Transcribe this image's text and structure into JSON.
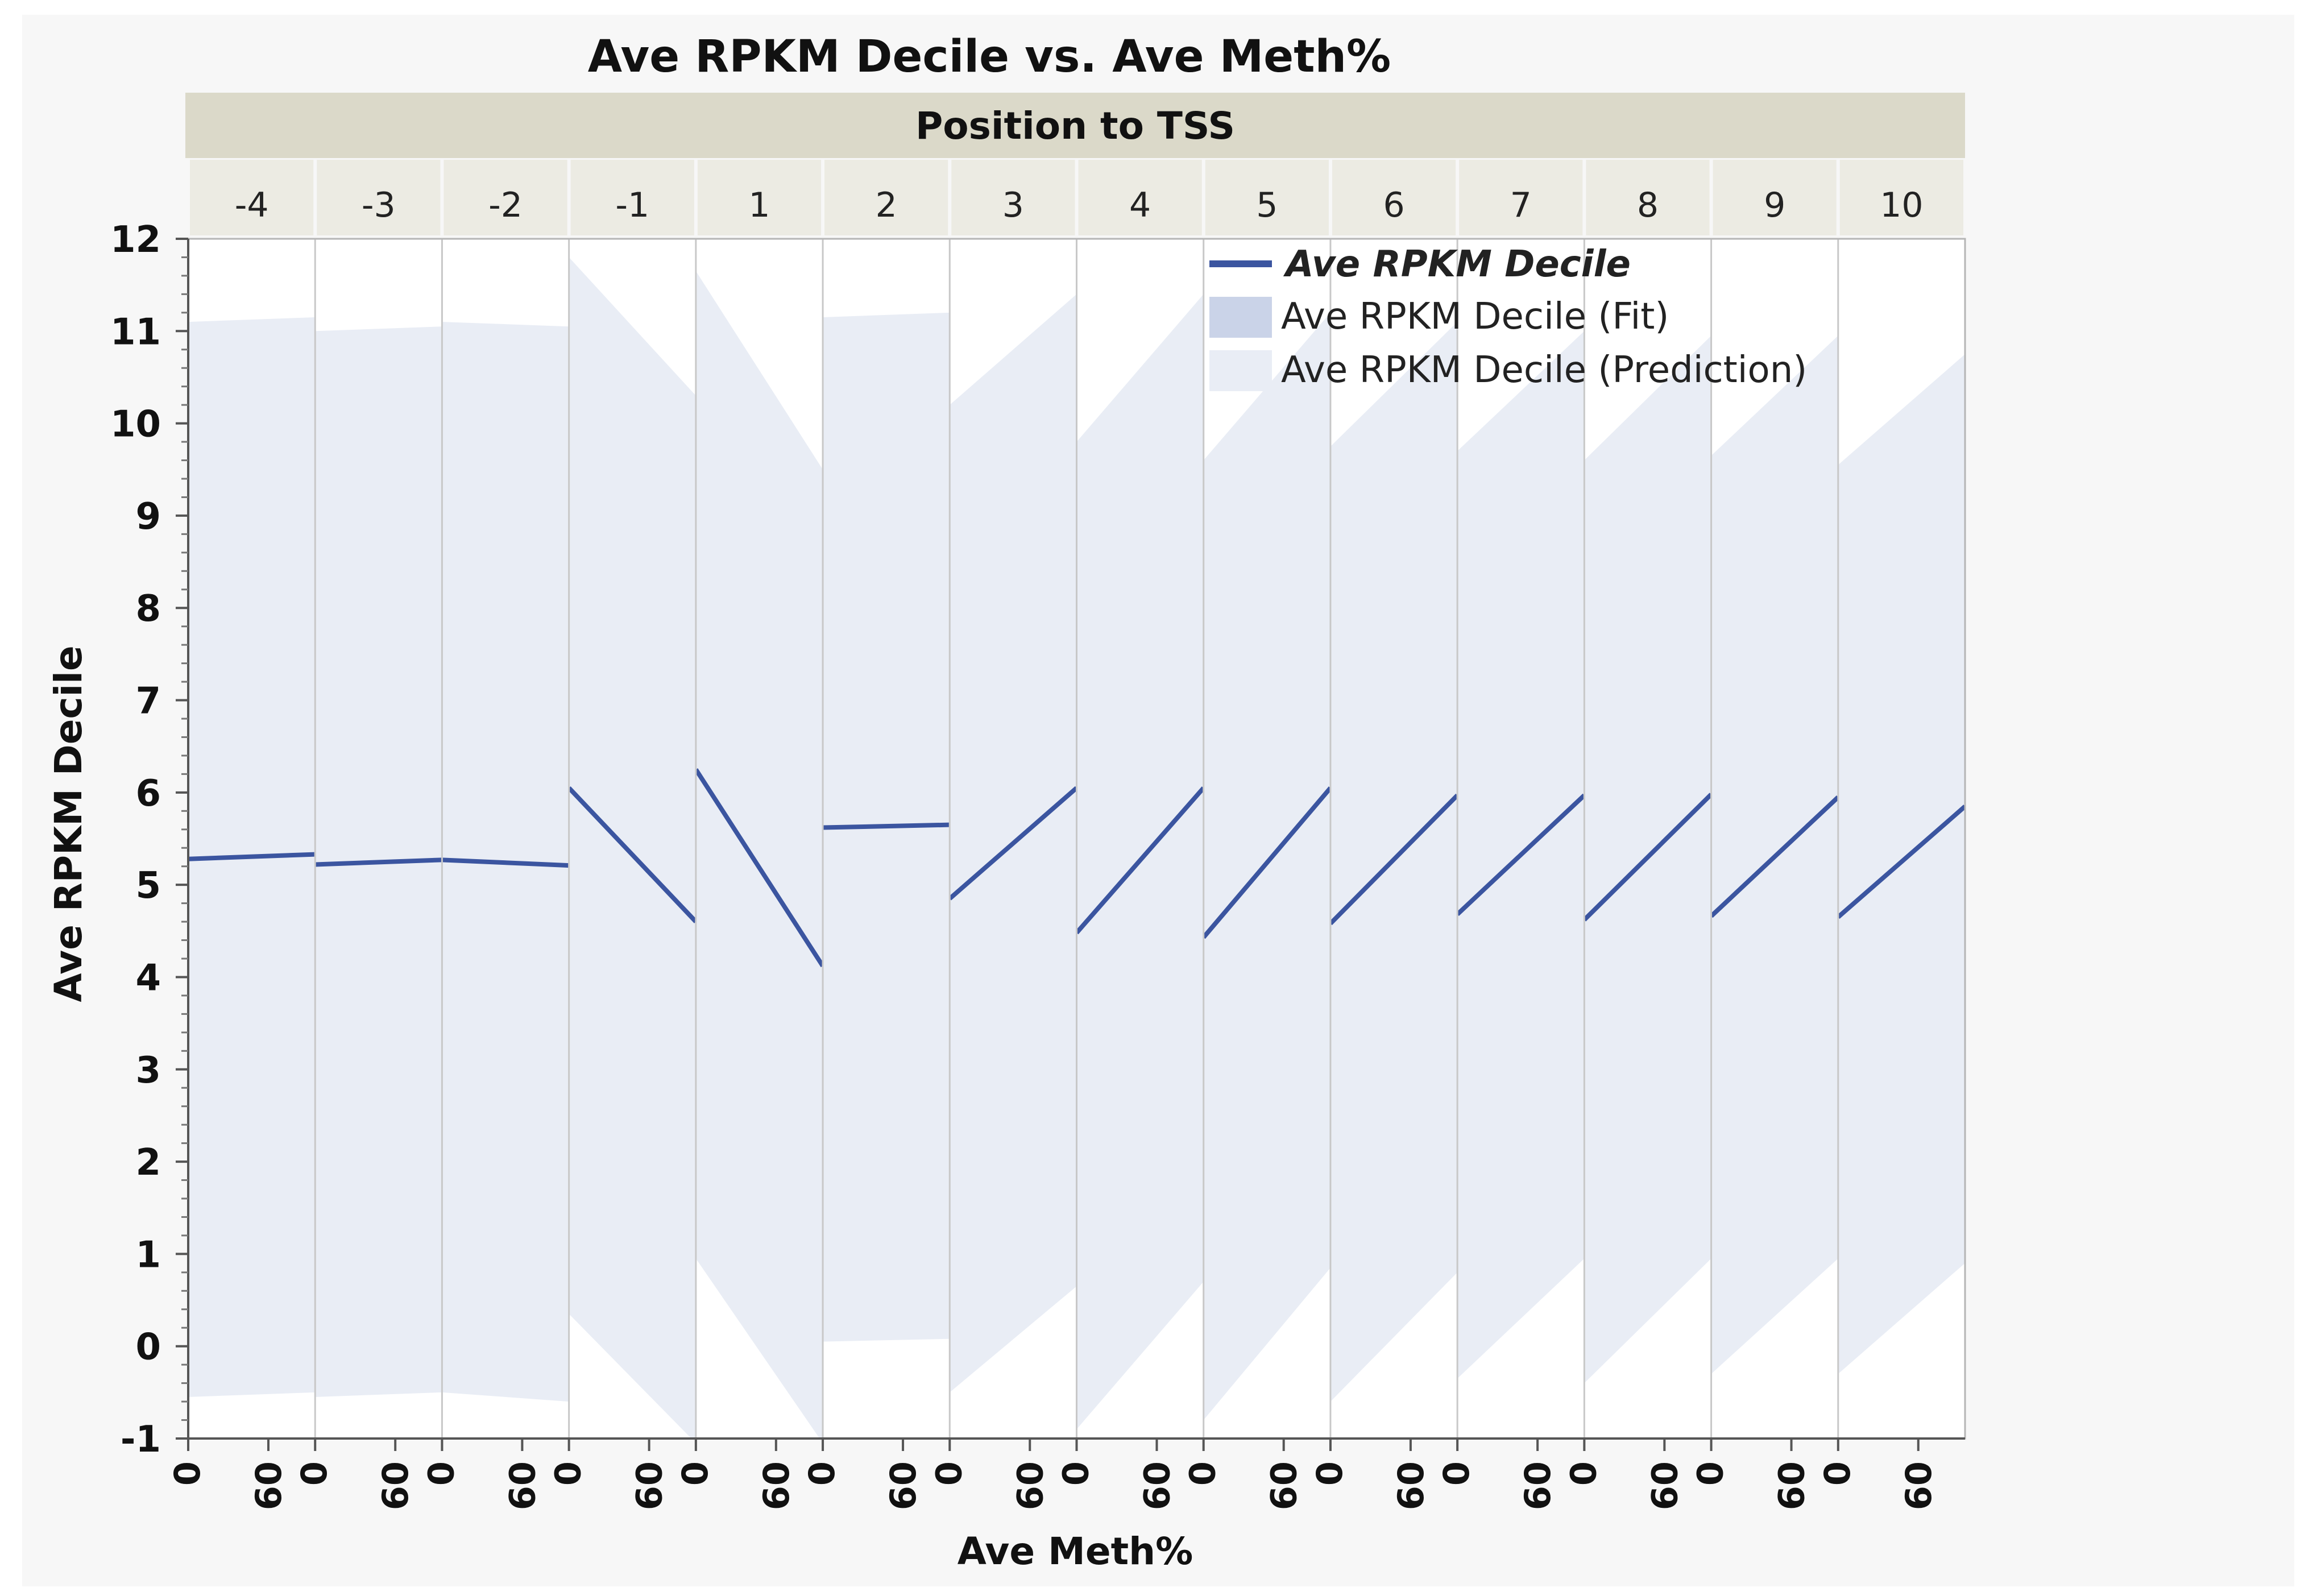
{
  "chart_data": {
    "type": "line",
    "title": "Ave RPKM Decile vs. Ave Meth%",
    "facet_title": "Position to TSS",
    "xlabel": "Ave Meth%",
    "ylabel": "Ave RPKM Decile",
    "ylim": [
      -1,
      12
    ],
    "yticks": [
      "-1",
      "0",
      "1",
      "2",
      "3",
      "4",
      "5",
      "6",
      "7",
      "8",
      "9",
      "10",
      "11",
      "12"
    ],
    "xticks": [
      "0",
      "60"
    ],
    "xlim": [
      0,
      95
    ],
    "grid": false,
    "legend_position": "top-right",
    "legend": [
      {
        "label": "Ave RPKM Decile",
        "kind": "line"
      },
      {
        "label": "Ave RPKM Decile (Fit)",
        "kind": "fit-band"
      },
      {
        "label": "Ave RPKM Decile (Prediction)",
        "kind": "prediction-band"
      }
    ],
    "colors": {
      "line": "#3b55a0",
      "fit_band": "#cad3e8",
      "prediction_band": "#e9edf5",
      "strip_dark": "#dbd9c9",
      "strip_light": "#ecebe3"
    },
    "panels": [
      {
        "label": "-4",
        "fit": [
          5.28,
          5.33
        ],
        "pred_upper": [
          11.1,
          11.15
        ],
        "pred_lower": [
          -0.55,
          -0.5
        ]
      },
      {
        "label": "-3",
        "fit": [
          5.22,
          5.27
        ],
        "pred_upper": [
          11.0,
          11.05
        ],
        "pred_lower": [
          -0.55,
          -0.5
        ]
      },
      {
        "label": "-2",
        "fit": [
          5.27,
          5.21
        ],
        "pred_upper": [
          11.1,
          11.05
        ],
        "pred_lower": [
          -0.5,
          -0.6
        ]
      },
      {
        "label": "-1",
        "fit": [
          6.05,
          4.6
        ],
        "pred_upper": [
          11.8,
          10.3
        ],
        "pred_lower": [
          0.35,
          -1.05
        ]
      },
      {
        "label": "1",
        "fit": [
          6.25,
          4.12
        ],
        "pred_upper": [
          11.65,
          9.5
        ],
        "pred_lower": [
          0.95,
          -1.05
        ]
      },
      {
        "label": "2",
        "fit": [
          5.62,
          5.65
        ],
        "pred_upper": [
          11.15,
          11.2
        ],
        "pred_lower": [
          0.05,
          0.08
        ]
      },
      {
        "label": "3",
        "fit": [
          4.85,
          6.05
        ],
        "pred_upper": [
          10.2,
          11.4
        ],
        "pred_lower": [
          -0.5,
          0.65
        ]
      },
      {
        "label": "4",
        "fit": [
          4.48,
          6.05
        ],
        "pred_upper": [
          9.8,
          11.4
        ],
        "pred_lower": [
          -0.9,
          0.7
        ]
      },
      {
        "label": "5",
        "fit": [
          4.43,
          6.05
        ],
        "pred_upper": [
          9.6,
          11.2
        ],
        "pred_lower": [
          -0.8,
          0.85
        ]
      },
      {
        "label": "6",
        "fit": [
          4.58,
          5.97
        ],
        "pred_upper": [
          9.75,
          11.1
        ],
        "pred_lower": [
          -0.6,
          0.8
        ]
      },
      {
        "label": "7",
        "fit": [
          4.68,
          5.97
        ],
        "pred_upper": [
          9.7,
          11.0
        ],
        "pred_lower": [
          -0.35,
          0.95
        ]
      },
      {
        "label": "8",
        "fit": [
          4.62,
          5.98
        ],
        "pred_upper": [
          9.6,
          10.95
        ],
        "pred_lower": [
          -0.4,
          0.95
        ]
      },
      {
        "label": "9",
        "fit": [
          4.66,
          5.95
        ],
        "pred_upper": [
          9.65,
          10.95
        ],
        "pred_lower": [
          -0.3,
          0.95
        ]
      },
      {
        "label": "10",
        "fit": [
          4.65,
          5.85
        ],
        "pred_upper": [
          9.55,
          10.75
        ],
        "pred_lower": [
          -0.3,
          0.9
        ]
      }
    ]
  }
}
